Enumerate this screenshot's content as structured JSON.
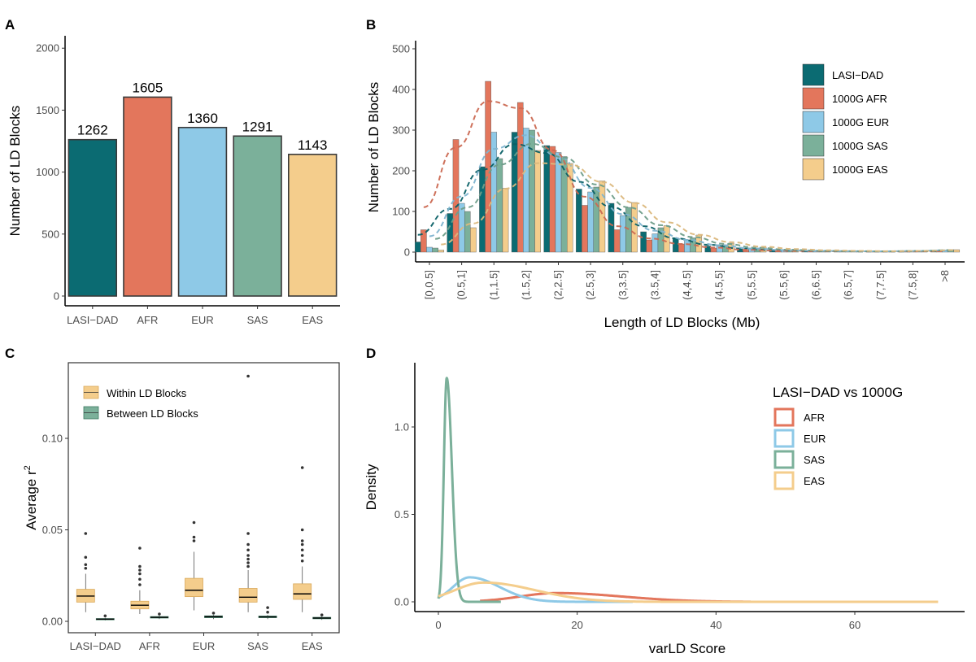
{
  "panel_letters": [
    "A",
    "B",
    "C",
    "D"
  ],
  "chart_data": [
    {
      "id": "A",
      "type": "bar",
      "categories": [
        "LASI−DAD",
        "AFR",
        "EUR",
        "SAS",
        "EAS"
      ],
      "values": [
        1262,
        1605,
        1360,
        1291,
        1143
      ],
      "data_labels": [
        "1262",
        "1605",
        "1360",
        "1291",
        "1143"
      ],
      "colors": [
        "#0b6b72",
        "#e3765c",
        "#8ec9e7",
        "#7bb09a",
        "#f4cd8c"
      ],
      "xlabel": "",
      "ylabel": "Number of LD Blocks",
      "ylim": [
        0,
        2100
      ],
      "yticks": [
        0,
        500,
        1000,
        1500,
        2000
      ],
      "grid": false
    },
    {
      "id": "B",
      "type": "bar",
      "categories": [
        "[0,0.5]",
        "(0.5,1]",
        "(1,1.5]",
        "(1.5,2]",
        "(2,2.5]",
        "(2.5,3]",
        "(3,3.5]",
        "(3.5,4]",
        "(4,4.5]",
        "(4.5,5]",
        "(5,5.5]",
        "(5.5,6]",
        "(6,6.5]",
        "(6.5,7]",
        "(7,7.5]",
        "(7.5,8]",
        ">8"
      ],
      "series": [
        {
          "name": "LASI−DAD",
          "color": "#0b6b72",
          "values": [
            25,
            95,
            210,
            295,
            262,
            155,
            120,
            50,
            35,
            15,
            8,
            5,
            3,
            2,
            2,
            1,
            3
          ]
        },
        {
          "name": "1000G AFR",
          "color": "#e3765c",
          "values": [
            55,
            277,
            420,
            368,
            260,
            115,
            55,
            30,
            20,
            10,
            5,
            3,
            3,
            2,
            2,
            1,
            3
          ]
        },
        {
          "name": "1000G EUR",
          "color": "#8ec9e7",
          "values": [
            12,
            120,
            295,
            305,
            245,
            148,
            90,
            45,
            30,
            15,
            8,
            5,
            3,
            2,
            2,
            2,
            5
          ]
        },
        {
          "name": "1000G SAS",
          "color": "#7bb09a",
          "values": [
            10,
            100,
            230,
            300,
            235,
            160,
            110,
            60,
            35,
            18,
            10,
            5,
            3,
            2,
            2,
            2,
            6
          ]
        },
        {
          "name": "1000G EAS",
          "color": "#f4cd8c",
          "values": [
            5,
            60,
            157,
            250,
            218,
            175,
            122,
            65,
            42,
            22,
            12,
            7,
            4,
            3,
            2,
            2,
            6
          ]
        }
      ],
      "trend_lines": "dashed smoothed density per series",
      "xlabel": "Length of LD Blocks (Mb)",
      "ylabel": "Number of LD Blocks",
      "ylim": [
        0,
        520
      ],
      "yticks": [
        0,
        100,
        200,
        300,
        400,
        500
      ],
      "legend_position": "top-right",
      "grid": false
    },
    {
      "id": "C",
      "type": "box",
      "categories": [
        "LASI−DAD",
        "AFR",
        "EUR",
        "SAS",
        "EAS"
      ],
      "series": [
        {
          "name": "Within LD Blocks",
          "color": "#f4cd8c",
          "stroke": "#d9a85a",
          "boxes": [
            {
              "q1": 0.0105,
              "median": 0.0138,
              "q3": 0.0175,
              "lo": 0.005,
              "hi": 0.026,
              "outliers": [
                0.029,
                0.031,
                0.035,
                0.048
              ]
            },
            {
              "q1": 0.0068,
              "median": 0.0088,
              "q3": 0.011,
              "lo": 0.004,
              "hi": 0.017,
              "outliers": [
                0.02,
                0.023,
                0.026,
                0.028,
                0.03,
                0.04
              ]
            },
            {
              "q1": 0.0135,
              "median": 0.017,
              "q3": 0.0235,
              "lo": 0.006,
              "hi": 0.038,
              "outliers": [
                0.044,
                0.046,
                0.054
              ]
            },
            {
              "q1": 0.0105,
              "median": 0.0132,
              "q3": 0.018,
              "lo": 0.005,
              "hi": 0.028,
              "outliers": [
                0.03,
                0.032,
                0.034,
                0.036,
                0.039,
                0.042,
                0.048,
                0.134
              ]
            },
            {
              "q1": 0.012,
              "median": 0.015,
              "q3": 0.0205,
              "lo": 0.005,
              "hi": 0.03,
              "outliers": [
                0.033,
                0.036,
                0.039,
                0.042,
                0.044,
                0.05,
                0.084
              ]
            }
          ]
        },
        {
          "name": "Between LD Blocks",
          "color": "#7bb09a",
          "stroke": "#3d7a62",
          "boxes": [
            {
              "q1": 0.001,
              "median": 0.0012,
              "q3": 0.0015,
              "lo": 0.0005,
              "hi": 0.002,
              "outliers": [
                0.003
              ]
            },
            {
              "q1": 0.0018,
              "median": 0.0022,
              "q3": 0.0026,
              "lo": 0.0012,
              "hi": 0.0032,
              "outliers": [
                0.004
              ]
            },
            {
              "q1": 0.002,
              "median": 0.0025,
              "q3": 0.003,
              "lo": 0.0012,
              "hi": 0.0036,
              "outliers": [
                0.0045
              ]
            },
            {
              "q1": 0.002,
              "median": 0.0024,
              "q3": 0.0029,
              "lo": 0.0012,
              "hi": 0.0035,
              "outliers": [
                0.005,
                0.0075
              ]
            },
            {
              "q1": 0.0014,
              "median": 0.0018,
              "q3": 0.0022,
              "lo": 0.0008,
              "hi": 0.0028,
              "outliers": [
                0.0035
              ]
            }
          ]
        }
      ],
      "xlabel": "",
      "ylabel": "Average r",
      "ylabel_superscript": "2",
      "ylim": [
        -0.002,
        0.14
      ],
      "yticks": [
        0.0,
        0.05,
        0.1
      ],
      "ytick_labels": [
        "0.00",
        "0.05",
        "0.10"
      ],
      "legend_position": "top-left",
      "grid": false
    },
    {
      "id": "D",
      "type": "line",
      "legend_title": "LASI−DAD vs 1000G",
      "series": [
        {
          "name": "AFR",
          "color": "#e3765c",
          "peak_x": 17,
          "peak_y": 0.05,
          "spread": 7,
          "x_start": 6,
          "x_end": 45
        },
        {
          "name": "EUR",
          "color": "#8ec9e7",
          "peak_x": 4.5,
          "peak_y": 0.14,
          "spread": 3.2,
          "x_start": 0,
          "x_end": 28
        },
        {
          "name": "SAS",
          "color": "#7bb09a",
          "peak_x": 1.2,
          "peak_y": 1.28,
          "spread": 0.55,
          "x_start": 0,
          "x_end": 9
        },
        {
          "name": "EAS",
          "color": "#f4cd8c",
          "peak_x": 6.5,
          "peak_y": 0.11,
          "spread": 5.5,
          "x_start": 0,
          "x_end": 72
        }
      ],
      "xlabel": "varLD Score",
      "ylabel": "Density",
      "xlim": [
        -3,
        76
      ],
      "ylim": [
        -0.03,
        1.33
      ],
      "xticks": [
        0,
        20,
        40,
        60
      ],
      "yticks": [
        0.0,
        0.5,
        1.0
      ],
      "ytick_labels": [
        "0.0",
        "0.5",
        "1.0"
      ],
      "legend_position": "top-right",
      "grid": false
    }
  ]
}
